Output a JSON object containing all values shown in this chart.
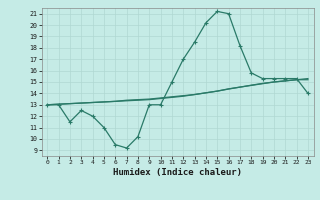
{
  "xlabel": "Humidex (Indice chaleur)",
  "bg_color": "#c5ebe6",
  "grid_color": "#b0d8d2",
  "line_color": "#2a7a68",
  "xlim": [
    -0.5,
    23.5
  ],
  "ylim": [
    8.5,
    21.5
  ],
  "yticks": [
    9,
    10,
    11,
    12,
    13,
    14,
    15,
    16,
    17,
    18,
    19,
    20,
    21
  ],
  "xticks": [
    0,
    1,
    2,
    3,
    4,
    5,
    6,
    7,
    8,
    9,
    10,
    11,
    12,
    13,
    14,
    15,
    16,
    17,
    18,
    19,
    20,
    21,
    22,
    23
  ],
  "series1_x": [
    0,
    1,
    2,
    3,
    4,
    5,
    6,
    7,
    8,
    9,
    10,
    11,
    12,
    13,
    14,
    15,
    16,
    17,
    18,
    19,
    20,
    21,
    22,
    23
  ],
  "series1_y": [
    13.0,
    13.0,
    11.5,
    12.5,
    12.0,
    11.0,
    9.5,
    9.2,
    10.2,
    13.0,
    13.0,
    15.0,
    17.0,
    18.5,
    20.2,
    21.2,
    21.0,
    18.2,
    15.8,
    15.3,
    15.3,
    15.3,
    15.3,
    14.0
  ],
  "series2_x": [
    0,
    1,
    2,
    3,
    4,
    5,
    6,
    7,
    8,
    9,
    10,
    11,
    12,
    13,
    14,
    15,
    16,
    17,
    18,
    19,
    20,
    21,
    22,
    23
  ],
  "series2_y": [
    13.0,
    13.05,
    13.1,
    13.15,
    13.2,
    13.25,
    13.3,
    13.4,
    13.45,
    13.5,
    13.6,
    13.7,
    13.8,
    13.9,
    14.05,
    14.2,
    14.4,
    14.55,
    14.7,
    14.85,
    15.0,
    15.1,
    15.2,
    15.3
  ],
  "series3_x": [
    0,
    1,
    2,
    3,
    4,
    5,
    6,
    7,
    8,
    9,
    10,
    11,
    12,
    13,
    14,
    15,
    16,
    17,
    18,
    19,
    20,
    21,
    22,
    23
  ],
  "series3_y": [
    13.0,
    13.05,
    13.1,
    13.15,
    13.2,
    13.25,
    13.3,
    13.35,
    13.4,
    13.45,
    13.55,
    13.65,
    13.75,
    13.9,
    14.05,
    14.2,
    14.38,
    14.55,
    14.72,
    14.88,
    15.0,
    15.1,
    15.2,
    15.2
  ]
}
